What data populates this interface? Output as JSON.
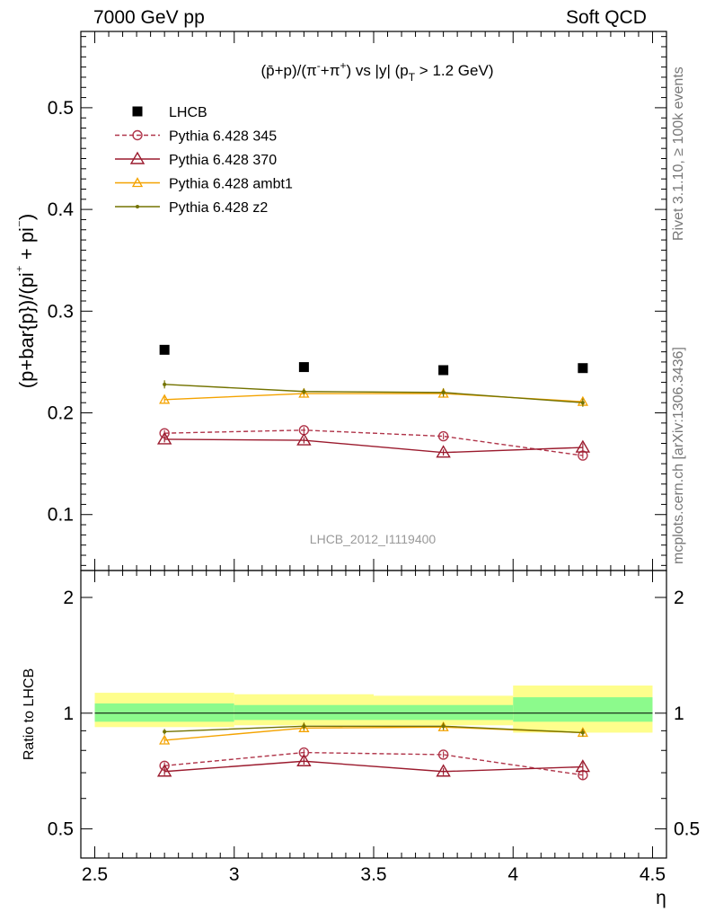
{
  "header": {
    "left": "7000 GeV pp",
    "right": "Soft QCD"
  },
  "side_texts": {
    "rivet": "Rivet 3.1.10, ≥ 100k events",
    "mcplots": "mcplots.cern.ch [arXiv:1306.3436]"
  },
  "plot_title": "(p̄+p)/(π⁻+π⁺) vs |y| (p_T > 1.2 GeV)",
  "watermark": "LHCB_2012_I1119400",
  "colors": {
    "lhcb": "#000000",
    "py345": "#b0354a",
    "py370": "#9b1b2e",
    "ambt1": "#f4a300",
    "z2": "#737300",
    "band_inner": "#8cfa8c",
    "band_outer": "#fefe8c"
  },
  "chart_data": [
    {
      "type": "line",
      "xlabel": "",
      "ylabel": "(p+bar{p})/(pi⁺ + pi⁻)",
      "xlim": [
        2.45,
        4.55
      ],
      "ylim": [
        0.045,
        0.575
      ],
      "x_ticks": [
        2.5,
        3,
        3.5,
        4,
        4.5
      ],
      "y_ticks": [
        0.1,
        0.2,
        0.3,
        0.4,
        0.5
      ],
      "y_tick_labels": [
        "0.1",
        "0.2",
        "0.3",
        "0.4",
        "0.5"
      ],
      "legend_position": "top-left",
      "series": [
        {
          "name": "LHCB",
          "style": "data",
          "x": [
            2.75,
            3.25,
            3.75,
            4.25
          ],
          "y": [
            0.262,
            0.245,
            0.242,
            0.244
          ]
        },
        {
          "name": "Pythia 6.428 345",
          "style": "open-circle-dashed",
          "x": [
            2.75,
            3.25,
            3.75,
            4.25
          ],
          "y": [
            0.18,
            0.183,
            0.177,
            0.158
          ],
          "err": [
            0.003,
            0.003,
            0.003,
            0.003
          ]
        },
        {
          "name": "Pythia 6.428 370",
          "style": "open-triangle",
          "x": [
            2.75,
            3.25,
            3.75,
            4.25
          ],
          "y": [
            0.174,
            0.173,
            0.161,
            0.166
          ],
          "err": [
            0.003,
            0.003,
            0.003,
            0.004
          ]
        },
        {
          "name": "Pythia 6.428 ambt1",
          "style": "small-triangle",
          "x": [
            2.75,
            3.25,
            3.75,
            4.25
          ],
          "y": [
            0.213,
            0.219,
            0.219,
            0.211
          ],
          "err": [
            0.003,
            0.003,
            0.004,
            0.004
          ]
        },
        {
          "name": "Pythia 6.428 z2",
          "style": "dot",
          "x": [
            2.75,
            3.25,
            3.75,
            4.25
          ],
          "y": [
            0.228,
            0.221,
            0.22,
            0.21
          ],
          "err": [
            0.004,
            0.003,
            0.004,
            0.004
          ]
        }
      ]
    },
    {
      "type": "line",
      "xlabel": "η",
      "ylabel": "Ratio to LHCB",
      "xlim": [
        2.45,
        4.55
      ],
      "ylim": [
        0.42,
        2.35
      ],
      "log_y": true,
      "x_ticks": [
        2.5,
        3,
        3.5,
        4,
        4.5
      ],
      "x_tick_labels": [
        "2.5",
        "3",
        "3.5",
        "4",
        "4.5"
      ],
      "y_ticks": [
        0.5,
        1,
        2
      ],
      "y_tick_labels": [
        "0.5",
        "1",
        "2"
      ],
      "bands": [
        {
          "x": [
            2.5,
            3.0
          ],
          "inner": [
            0.95,
            1.06
          ],
          "outer": [
            0.92,
            1.13
          ]
        },
        {
          "x": [
            3.0,
            3.5
          ],
          "inner": [
            0.96,
            1.05
          ],
          "outer": [
            0.93,
            1.12
          ]
        },
        {
          "x": [
            3.5,
            4.0
          ],
          "inner": [
            0.96,
            1.05
          ],
          "outer": [
            0.93,
            1.11
          ]
        },
        {
          "x": [
            4.0,
            4.5
          ],
          "inner": [
            0.95,
            1.1
          ],
          "outer": [
            0.89,
            1.18
          ]
        }
      ],
      "series": [
        {
          "name": "Pythia 6.428 345",
          "style": "open-circle-dashed",
          "x": [
            2.75,
            3.25,
            3.75,
            4.25
          ],
          "y": [
            0.73,
            0.79,
            0.78,
            0.69
          ],
          "err": [
            0.015,
            0.015,
            0.015,
            0.02
          ]
        },
        {
          "name": "Pythia 6.428 370",
          "style": "open-triangle",
          "x": [
            2.75,
            3.25,
            3.75,
            4.25
          ],
          "y": [
            0.705,
            0.75,
            0.705,
            0.725
          ],
          "err": [
            0.015,
            0.015,
            0.015,
            0.02
          ]
        },
        {
          "name": "Pythia 6.428 ambt1",
          "style": "small-triangle",
          "x": [
            2.75,
            3.25,
            3.75,
            4.25
          ],
          "y": [
            0.85,
            0.915,
            0.92,
            0.89
          ],
          "err": [
            0.015,
            0.02,
            0.02,
            0.02
          ]
        },
        {
          "name": "Pythia 6.428 z2",
          "style": "dot",
          "x": [
            2.75,
            3.25,
            3.75,
            4.25
          ],
          "y": [
            0.895,
            0.925,
            0.925,
            0.89
          ],
          "err": [
            0.015,
            0.02,
            0.02,
            0.02
          ]
        }
      ]
    }
  ]
}
